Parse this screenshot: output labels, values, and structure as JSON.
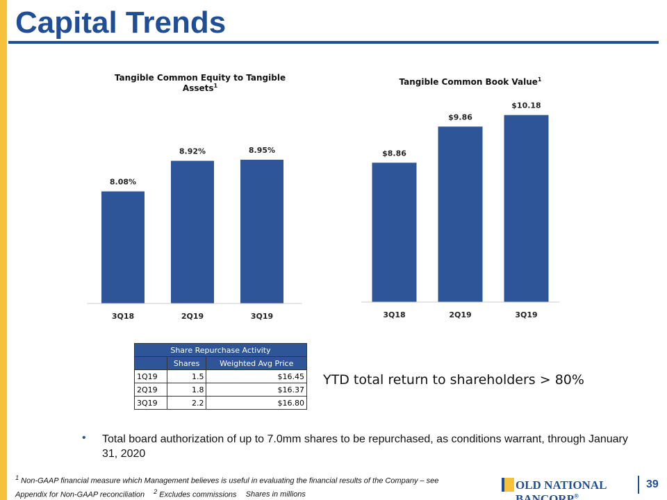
{
  "title": "Capital Trends",
  "chart_data": [
    {
      "type": "bar",
      "title": "Tangible Common Equity to Tangible Assets",
      "title_footnote_mark": "1",
      "categories": [
        "3Q18",
        "2Q19",
        "3Q19"
      ],
      "values": [
        8.08,
        8.92,
        8.95
      ],
      "value_labels": [
        "8.08%",
        "8.92%",
        "8.95%"
      ],
      "color": "#2e5597",
      "ylim": [
        5,
        10
      ]
    },
    {
      "type": "bar",
      "title": "Tangible Common Book Value",
      "title_footnote_mark": "1",
      "categories": [
        "3Q18",
        "2Q19",
        "3Q19"
      ],
      "values": [
        8.86,
        9.86,
        10.18
      ],
      "value_labels": [
        "$8.86",
        "$9.86",
        "$10.18"
      ],
      "color": "#2e5597",
      "ylim": [
        5,
        11
      ]
    }
  ],
  "table": {
    "title": "Share Repurchase Activity",
    "columns": [
      "Shares",
      "Weighted Avg Price"
    ],
    "rows": [
      [
        "1Q19",
        "1.5",
        "$16.45"
      ],
      [
        "2Q19",
        "1.8",
        "$16.37"
      ],
      [
        "3Q19",
        "2.2",
        "$16.80"
      ]
    ]
  },
  "callout": "YTD total return to shareholders > 80%",
  "bullets": [
    "Total board authorization of up to 7.0mm shares to be repurchased, as conditions warrant, through January 31, 2020"
  ],
  "footnotes": [
    {
      "mark": "1",
      "text": "Non-GAAP financial measure which Management believes is useful in evaluating the financial results of the Company – see Appendix for Non-GAAP reconciliation"
    },
    {
      "mark": "2",
      "text": "Excludes commissions"
    }
  ],
  "footnote_extra": "Shares in millions",
  "logo": "OLD NATIONAL BANCORP",
  "logo_mark": "®",
  "page_number": "39"
}
